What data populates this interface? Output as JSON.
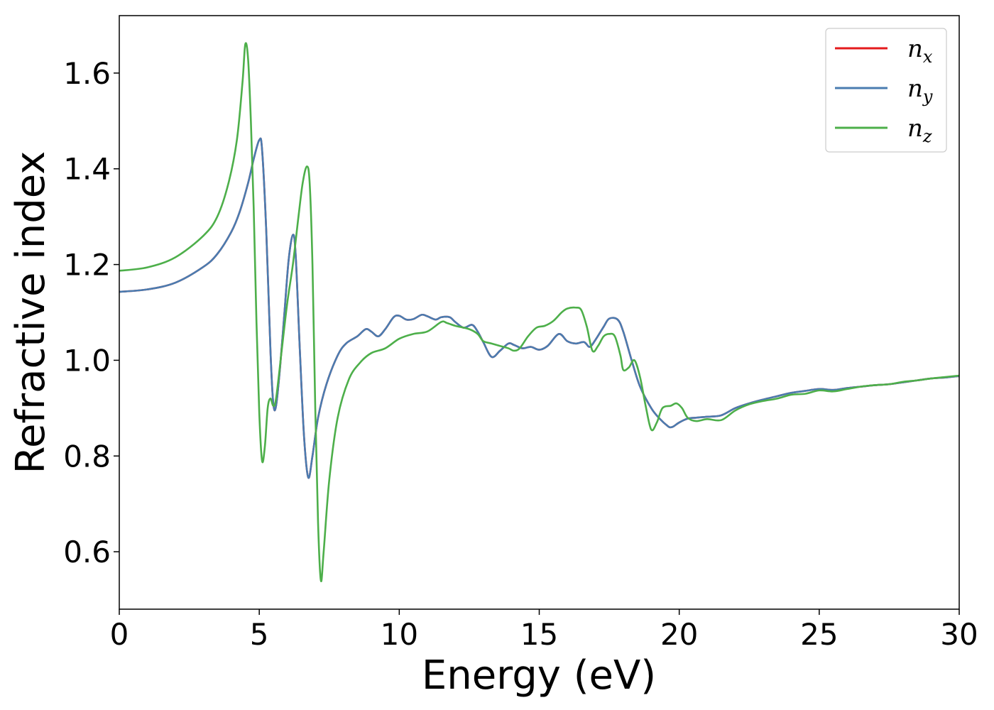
{
  "chart_data": {
    "type": "line",
    "xlabel": "Energy (eV)",
    "ylabel": "Refractive index",
    "xlim": [
      0,
      30
    ],
    "ylim": [
      0.48,
      1.72
    ],
    "xticks": [
      0,
      5,
      10,
      15,
      20,
      25,
      30
    ],
    "xtick_labels": [
      "0",
      "5",
      "10",
      "15",
      "20",
      "25",
      "30"
    ],
    "yticks": [
      0.6,
      0.8,
      1.0,
      1.2,
      1.4,
      1.6
    ],
    "ytick_labels": [
      "0.6",
      "0.8",
      "1.0",
      "1.2",
      "1.4",
      "1.6"
    ],
    "grid": false,
    "legend_position": "top-right",
    "series": [
      {
        "name": "n_x",
        "legend_base": "n",
        "legend_sub": "x",
        "color": "#e41a1c",
        "x": [
          0,
          1,
          2,
          3,
          3.5,
          4,
          4.3,
          4.6,
          4.8,
          5.0,
          5.1,
          5.25,
          5.4,
          5.5,
          5.6,
          5.75,
          5.9,
          6.05,
          6.2,
          6.3,
          6.45,
          6.6,
          6.75,
          6.9,
          7.1,
          7.4,
          7.8,
          8.1,
          8.5,
          8.8,
          9.0,
          9.25,
          9.5,
          9.8,
          10.0,
          10.25,
          10.5,
          10.8,
          11.0,
          11.3,
          11.5,
          11.8,
          12.0,
          12.3,
          12.6,
          12.8,
          13.0,
          13.3,
          13.6,
          13.9,
          14.1,
          14.4,
          14.7,
          15.0,
          15.3,
          15.7,
          16.0,
          16.3,
          16.6,
          16.8,
          17.0,
          17.3,
          17.5,
          17.8,
          18.0,
          18.3,
          18.6,
          19.0,
          19.3,
          19.6,
          19.7,
          19.8,
          20.0,
          20.3,
          20.6,
          21.0,
          21.5,
          22.0,
          22.5,
          23.0,
          23.5,
          24.0,
          24.5,
          25.0,
          25.5,
          26.0,
          26.5,
          27.0,
          27.5,
          28.0,
          28.5,
          29.0,
          29.5,
          30.0
        ],
        "y": [
          1.143,
          1.148,
          1.162,
          1.195,
          1.222,
          1.268,
          1.31,
          1.37,
          1.42,
          1.46,
          1.44,
          1.27,
          1.02,
          0.91,
          0.905,
          0.99,
          1.1,
          1.21,
          1.262,
          1.22,
          1.02,
          0.84,
          0.755,
          0.8,
          0.88,
          0.95,
          1.01,
          1.035,
          1.05,
          1.065,
          1.06,
          1.05,
          1.065,
          1.09,
          1.093,
          1.085,
          1.086,
          1.095,
          1.092,
          1.085,
          1.09,
          1.09,
          1.08,
          1.068,
          1.074,
          1.06,
          1.038,
          1.007,
          1.02,
          1.035,
          1.032,
          1.025,
          1.028,
          1.022,
          1.03,
          1.055,
          1.04,
          1.035,
          1.038,
          1.028,
          1.042,
          1.07,
          1.087,
          1.085,
          1.06,
          1.0,
          0.945,
          0.9,
          0.878,
          0.862,
          0.86,
          0.862,
          0.87,
          0.878,
          0.88,
          0.882,
          0.885,
          0.9,
          0.91,
          0.918,
          0.925,
          0.932,
          0.936,
          0.94,
          0.938,
          0.942,
          0.945,
          0.948,
          0.95,
          0.954,
          0.958,
          0.962,
          0.964,
          0.967
        ]
      },
      {
        "name": "n_y",
        "legend_base": "n",
        "legend_sub": "y",
        "color": "#4a7cb0",
        "x": [
          0,
          1,
          2,
          3,
          3.5,
          4,
          4.3,
          4.6,
          4.8,
          5.0,
          5.1,
          5.25,
          5.4,
          5.5,
          5.6,
          5.75,
          5.9,
          6.05,
          6.2,
          6.3,
          6.45,
          6.6,
          6.75,
          6.9,
          7.1,
          7.4,
          7.8,
          8.1,
          8.5,
          8.8,
          9.0,
          9.25,
          9.5,
          9.8,
          10.0,
          10.25,
          10.5,
          10.8,
          11.0,
          11.3,
          11.5,
          11.8,
          12.0,
          12.3,
          12.6,
          12.8,
          13.0,
          13.3,
          13.6,
          13.9,
          14.1,
          14.4,
          14.7,
          15.0,
          15.3,
          15.7,
          16.0,
          16.3,
          16.6,
          16.8,
          17.0,
          17.3,
          17.5,
          17.8,
          18.0,
          18.3,
          18.6,
          19.0,
          19.3,
          19.6,
          19.7,
          19.8,
          20.0,
          20.3,
          20.6,
          21.0,
          21.5,
          22.0,
          22.5,
          23.0,
          23.5,
          24.0,
          24.5,
          25.0,
          25.5,
          26.0,
          26.5,
          27.0,
          27.5,
          28.0,
          28.5,
          29.0,
          29.5,
          30.0
        ],
        "y": [
          1.143,
          1.148,
          1.162,
          1.195,
          1.222,
          1.268,
          1.31,
          1.37,
          1.42,
          1.46,
          1.44,
          1.27,
          1.02,
          0.91,
          0.905,
          0.99,
          1.1,
          1.21,
          1.262,
          1.22,
          1.02,
          0.84,
          0.755,
          0.8,
          0.88,
          0.95,
          1.01,
          1.035,
          1.05,
          1.065,
          1.06,
          1.05,
          1.065,
          1.09,
          1.093,
          1.085,
          1.086,
          1.095,
          1.092,
          1.085,
          1.09,
          1.09,
          1.08,
          1.068,
          1.074,
          1.06,
          1.038,
          1.007,
          1.02,
          1.035,
          1.032,
          1.025,
          1.028,
          1.022,
          1.03,
          1.055,
          1.04,
          1.035,
          1.038,
          1.028,
          1.042,
          1.07,
          1.087,
          1.085,
          1.06,
          1.0,
          0.945,
          0.9,
          0.878,
          0.862,
          0.86,
          0.862,
          0.87,
          0.878,
          0.88,
          0.882,
          0.885,
          0.9,
          0.91,
          0.918,
          0.925,
          0.932,
          0.936,
          0.94,
          0.938,
          0.942,
          0.945,
          0.948,
          0.95,
          0.954,
          0.958,
          0.962,
          0.964,
          0.967
        ]
      },
      {
        "name": "n_z",
        "legend_base": "n",
        "legend_sub": "z",
        "color": "#4daf4a",
        "x": [
          0,
          1,
          2,
          3,
          3.5,
          3.9,
          4.2,
          4.4,
          4.5,
          4.6,
          4.7,
          4.8,
          4.9,
          5.0,
          5.1,
          5.2,
          5.3,
          5.4,
          5.5,
          5.6,
          5.8,
          6.0,
          6.2,
          6.4,
          6.55,
          6.7,
          6.8,
          6.9,
          7.0,
          7.1,
          7.2,
          7.3,
          7.5,
          7.8,
          8.2,
          8.6,
          9.0,
          9.5,
          10.0,
          10.5,
          11.0,
          11.5,
          11.7,
          12.0,
          12.5,
          12.8,
          13.0,
          13.3,
          13.6,
          13.9,
          14.1,
          14.3,
          14.6,
          14.9,
          15.2,
          15.5,
          15.8,
          16.0,
          16.3,
          16.5,
          16.7,
          16.9,
          17.1,
          17.3,
          17.5,
          17.7,
          17.9,
          18.0,
          18.2,
          18.4,
          18.6,
          18.8,
          19.0,
          19.2,
          19.4,
          19.7,
          19.9,
          20.1,
          20.3,
          20.6,
          21.0,
          21.5,
          22.0,
          22.5,
          23.0,
          23.5,
          24.0,
          24.5,
          25.0,
          25.5,
          26.0,
          26.5,
          27.0,
          27.5,
          28.0,
          28.5,
          29.0,
          29.5,
          30.0
        ],
        "y": [
          1.187,
          1.194,
          1.215,
          1.26,
          1.3,
          1.37,
          1.46,
          1.58,
          1.66,
          1.63,
          1.5,
          1.32,
          1.08,
          0.89,
          0.79,
          0.82,
          0.9,
          0.92,
          0.905,
          0.92,
          1.02,
          1.12,
          1.2,
          1.3,
          1.37,
          1.405,
          1.37,
          1.2,
          0.9,
          0.66,
          0.54,
          0.6,
          0.75,
          0.88,
          0.96,
          0.995,
          1.015,
          1.025,
          1.045,
          1.055,
          1.06,
          1.08,
          1.078,
          1.072,
          1.065,
          1.055,
          1.04,
          1.035,
          1.03,
          1.025,
          1.02,
          1.025,
          1.05,
          1.068,
          1.072,
          1.082,
          1.1,
          1.108,
          1.11,
          1.105,
          1.07,
          1.02,
          1.03,
          1.05,
          1.055,
          1.05,
          1.01,
          0.98,
          0.985,
          1.0,
          0.965,
          0.905,
          0.855,
          0.87,
          0.9,
          0.905,
          0.91,
          0.9,
          0.88,
          0.873,
          0.877,
          0.875,
          0.895,
          0.908,
          0.915,
          0.92,
          0.928,
          0.93,
          0.937,
          0.935,
          0.94,
          0.945,
          0.948,
          0.95,
          0.955,
          0.958,
          0.962,
          0.965,
          0.968
        ]
      }
    ]
  }
}
